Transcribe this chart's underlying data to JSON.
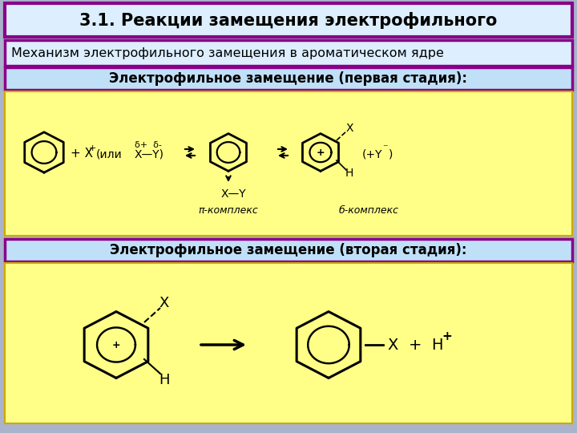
{
  "title": "3.1. Реакции замещения электрофильного",
  "subtitle": "Механизм электрофильного замещения в ароматическом ядре",
  "stage1_label": "Электрофильное замещение (первая стадия):",
  "stage2_label": "Электрофильное замещение (вторая стадия):",
  "pi_complex": "π-комплекс",
  "sigma_complex": "б-комплекс",
  "bg_color": "#aab2cc",
  "title_bg": "#ddeeff",
  "title_border": "#880088",
  "subtitle_bg": "#ddeeff",
  "subtitle_border": "#880088",
  "stage_bg": "#c0e0f8",
  "stage_border": "#880088",
  "reaction_bg": "#ffff88",
  "reaction_border": "#ccaa00",
  "title_fontsize": 15,
  "label_fontsize": 12,
  "text_color": "#000000"
}
